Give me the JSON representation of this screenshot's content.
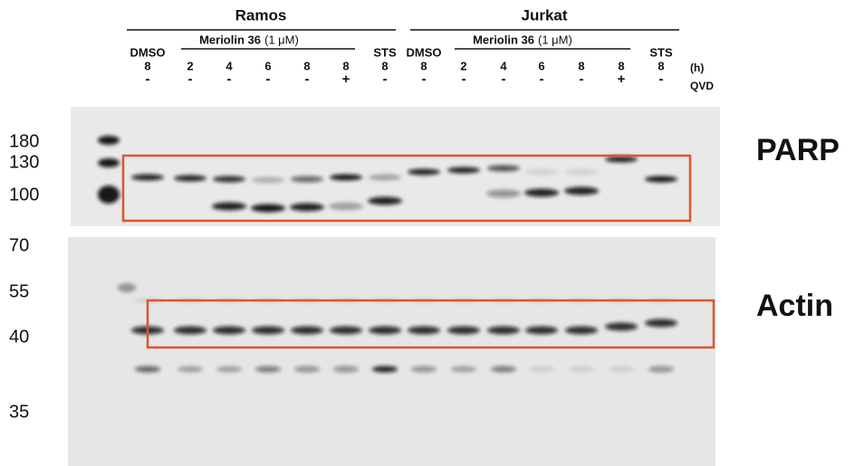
{
  "header": {
    "groups": [
      "Ramos",
      "Jurkat"
    ],
    "treatments": {
      "dmso": "DMSO",
      "drug": "Meriolin 36",
      "dose": "(1 μM)",
      "sts": "STS"
    },
    "times": [
      8,
      2,
      4,
      6,
      8,
      8,
      8
    ],
    "time_unit": "(h)",
    "qvd": [
      "-",
      "-",
      "-",
      "-",
      "-",
      "+",
      "-"
    ],
    "qvd_label": "QVD"
  },
  "markers": [
    180,
    130,
    100,
    70,
    55,
    40,
    35
  ],
  "proteins": [
    "PARP",
    "Actin"
  ]
}
